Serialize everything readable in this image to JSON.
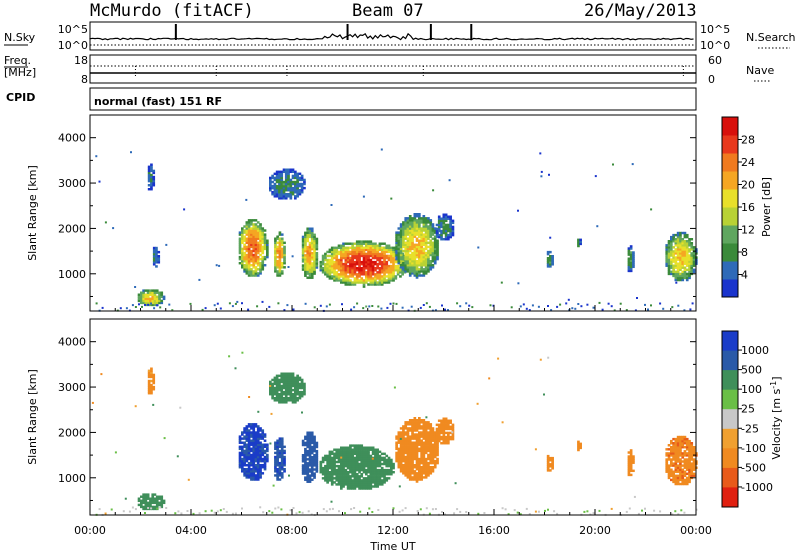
{
  "header": {
    "station": "McMurdo (fitACF)",
    "beam": "Beam 07",
    "date": "26/May/2013"
  },
  "noise_panel": {
    "left_label": "N.Sky",
    "left_ticks": [
      "10^5",
      "10^0"
    ],
    "right_label": "N.Search",
    "right_ticks": [
      "10^5",
      "10^0"
    ]
  },
  "freq_panel": {
    "left_label_line1": "Freq.",
    "left_label_line2": "[MHz]",
    "left_ticks": [
      "18",
      "8"
    ],
    "right_label": "Nave",
    "right_ticks": [
      "60",
      "0"
    ]
  },
  "cpid": {
    "label": "CPID",
    "value": "normal (fast) 151 RF"
  },
  "colors": {
    "power": [
      "#1a34cc",
      "#2e6ab8",
      "#3a8a3a",
      "#5fa65f",
      "#b8d235",
      "#e8e02a",
      "#f5a623",
      "#f07a1f",
      "#e8381c",
      "#d8100c"
    ],
    "velocity_pos": [
      "#1a3cc8",
      "#2a5aa8",
      "#3f8f5a",
      "#6abf46",
      "#c8c8c8"
    ],
    "velocity_neg": [
      "#f0a030",
      "#f08a20",
      "#e85a1a",
      "#e02010"
    ]
  },
  "chart_data": [
    {
      "type": "heatmap",
      "title": "Power [dB]",
      "ylabel": "Slant Range [km]",
      "ylim": [
        180,
        4500
      ],
      "xlim_hours": [
        0,
        24
      ],
      "y_ticks": [
        "1000",
        "2000",
        "3000",
        "4000"
      ],
      "colorbar": {
        "label": "Power [dB]",
        "ticks": [
          "4",
          "8",
          "12",
          "16",
          "20",
          "24",
          "28"
        ],
        "range": [
          0,
          32
        ]
      },
      "echo_regions": [
        {
          "t_start": 1.8,
          "t_end": 2.9,
          "r_low": 250,
          "r_high": 650,
          "peak_db": 20
        },
        {
          "t_start": 2.2,
          "t_end": 2.5,
          "r_low": 2800,
          "r_high": 3400,
          "peak_db": 6
        },
        {
          "t_start": 2.4,
          "t_end": 2.7,
          "r_low": 1100,
          "r_high": 1600,
          "peak_db": 6
        },
        {
          "t_start": 5.8,
          "t_end": 7.0,
          "r_low": 900,
          "r_high": 2200,
          "peak_db": 26
        },
        {
          "t_start": 7.2,
          "t_end": 7.7,
          "r_low": 900,
          "r_high": 1900,
          "peak_db": 24
        },
        {
          "t_start": 7.0,
          "t_end": 8.5,
          "r_low": 2600,
          "r_high": 3300,
          "peak_db": 8
        },
        {
          "t_start": 8.3,
          "t_end": 9.0,
          "r_low": 850,
          "r_high": 2000,
          "peak_db": 22
        },
        {
          "t_start": 9.0,
          "t_end": 12.6,
          "r_low": 700,
          "r_high": 1700,
          "peak_db": 30
        },
        {
          "t_start": 12.0,
          "t_end": 13.8,
          "r_low": 900,
          "r_high": 2300,
          "peak_db": 20
        },
        {
          "t_start": 13.6,
          "t_end": 14.4,
          "r_low": 1700,
          "r_high": 2300,
          "peak_db": 8
        },
        {
          "t_start": 18.0,
          "t_end": 18.3,
          "r_low": 1100,
          "r_high": 1500,
          "peak_db": 10
        },
        {
          "t_start": 19.2,
          "t_end": 19.4,
          "r_low": 1550,
          "r_high": 1800,
          "peak_db": 8
        },
        {
          "t_start": 21.2,
          "t_end": 21.5,
          "r_low": 1000,
          "r_high": 1600,
          "peak_db": 10
        },
        {
          "t_start": 22.7,
          "t_end": 24.0,
          "r_low": 800,
          "r_high": 1900,
          "peak_db": 20
        }
      ]
    },
    {
      "type": "heatmap",
      "title": "Velocity [m s-1]",
      "ylabel": "Slant Range [km]",
      "xlabel": "Time UT",
      "ylim": [
        180,
        4500
      ],
      "xlim_hours": [
        0,
        24
      ],
      "y_ticks": [
        "1000",
        "2000",
        "3000",
        "4000"
      ],
      "x_ticks": [
        "00:00",
        "04:00",
        "08:00",
        "12:00",
        "16:00",
        "20:00",
        "00:00"
      ],
      "colorbar": {
        "label": "Velocity [m s",
        "label_sup": "-1",
        "label_end": "]",
        "ticks": [
          "1000",
          "500",
          "100",
          "25",
          "-25",
          "-100",
          "-500",
          "-1000"
        ]
      },
      "echo_regions": [
        {
          "t_start": 1.8,
          "t_end": 2.9,
          "r_low": 250,
          "r_high": 650,
          "velocity": 120
        },
        {
          "t_start": 2.2,
          "t_end": 2.5,
          "r_low": 2800,
          "r_high": 3400,
          "velocity": -100
        },
        {
          "t_start": 5.8,
          "t_end": 7.0,
          "r_low": 900,
          "r_high": 2200,
          "velocity": 900
        },
        {
          "t_start": 7.2,
          "t_end": 7.7,
          "r_low": 900,
          "r_high": 1900,
          "velocity": 700
        },
        {
          "t_start": 7.0,
          "t_end": 8.5,
          "r_low": 2600,
          "r_high": 3300,
          "velocity": 300
        },
        {
          "t_start": 8.3,
          "t_end": 9.0,
          "r_low": 850,
          "r_high": 2000,
          "velocity": 600
        },
        {
          "t_start": 9.0,
          "t_end": 12.0,
          "r_low": 700,
          "r_high": 1700,
          "velocity": 200
        },
        {
          "t_start": 12.0,
          "t_end": 13.8,
          "r_low": 900,
          "r_high": 2300,
          "velocity": -150
        },
        {
          "t_start": 13.6,
          "t_end": 14.4,
          "r_low": 1700,
          "r_high": 2300,
          "velocity": -200
        },
        {
          "t_start": 18.0,
          "t_end": 18.3,
          "r_low": 1100,
          "r_high": 1500,
          "velocity": -200
        },
        {
          "t_start": 19.2,
          "t_end": 19.4,
          "r_low": 1550,
          "r_high": 1800,
          "velocity": -200
        },
        {
          "t_start": 21.2,
          "t_end": 21.5,
          "r_low": 1000,
          "r_high": 1600,
          "velocity": -200
        },
        {
          "t_start": 22.7,
          "t_end": 24.0,
          "r_low": 800,
          "r_high": 1900,
          "velocity": -250
        }
      ]
    }
  ]
}
